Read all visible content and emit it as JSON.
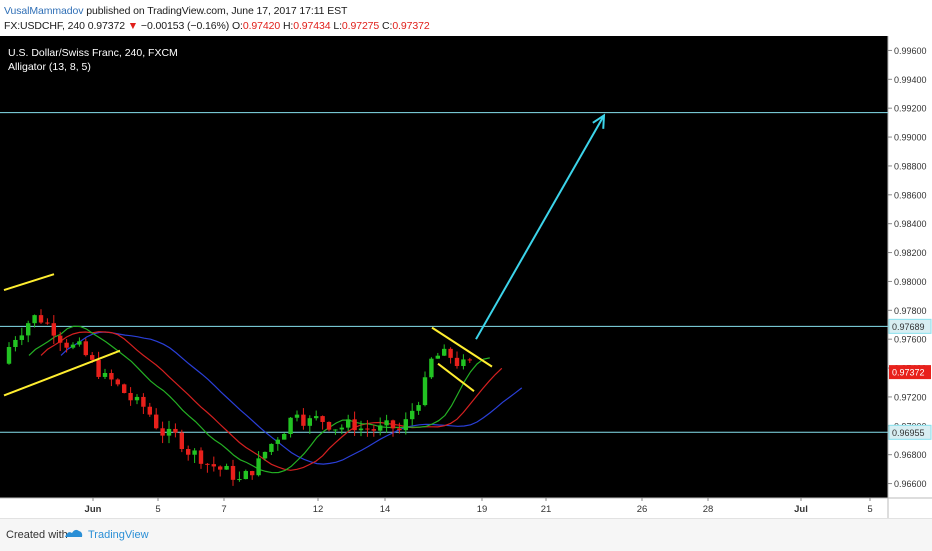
{
  "header": {
    "author": "VusalMammadov",
    "published": "published on TradingView.com, June 17, 2017 17:11 EST",
    "symbol_interval": "FX:USDCHF, 240",
    "last": "0.97372",
    "down_arrow": "▼",
    "change": "−0.00153 (−0.16%)",
    "open_label": "O:",
    "open": "0.97420",
    "high_label": "H:",
    "high": "0.97434",
    "low_label": "L:",
    "low": "0.97275",
    "close_label": "C:",
    "close": "0.97372"
  },
  "chart_overlay": {
    "title": "U.S. Dollar/Swiss Franc, 240, FXCM",
    "indicator": "Alligator (13, 8, 5)"
  },
  "colors": {
    "background": "#000000",
    "bull": "#22c322",
    "bear": "#e8201b",
    "jaw": "#2a3fd8",
    "teeth": "#d42020",
    "lips": "#24b024",
    "trendline": "#ffee30",
    "level": "#86e0ee",
    "arrow": "#3cd4ea",
    "price_badge": "#e8201b"
  },
  "chart_data": {
    "type": "candlestick",
    "symbol": "FX:USDCHF",
    "interval": "240",
    "y_axis": {
      "min": 0.965,
      "max": 0.997,
      "ticks": [
        "0.99600",
        "0.99400",
        "0.99200",
        "0.99000",
        "0.98800",
        "0.98600",
        "0.98400",
        "0.98200",
        "0.98000",
        "0.97800",
        "0.97600",
        "0.97400",
        "0.97200",
        "0.97000",
        "0.96800",
        "0.96600"
      ]
    },
    "x_axis": {
      "labels": [
        "Jun",
        "5",
        "7",
        "12",
        "14",
        "19",
        "21",
        "26",
        "28",
        "Jul",
        "5"
      ]
    },
    "horizontal_levels": [
      0.99169,
      0.97689,
      0.96955
    ],
    "level_labels": [
      "0.97689",
      "0.96955"
    ],
    "price_badge": "0.97372",
    "projection": {
      "from": 0.976,
      "to": 0.9915
    }
  },
  "footer": {
    "created_with": "Created with",
    "brand": "TradingView"
  }
}
